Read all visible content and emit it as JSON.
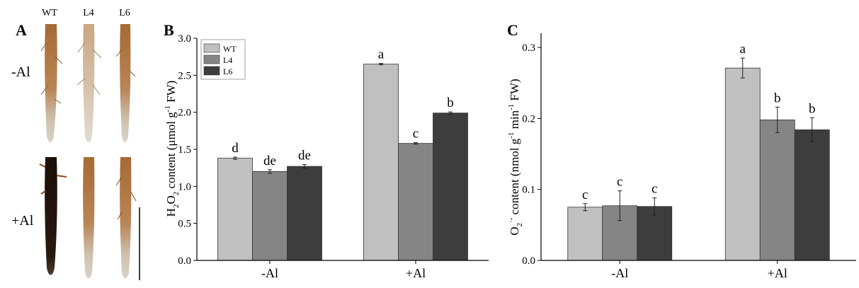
{
  "panel_a": {
    "letter": "A",
    "columns": [
      "WT",
      "L4",
      "L6"
    ],
    "rows": [
      "-Al",
      "+Al"
    ]
  },
  "chart_data": [
    {
      "panel_letter": "B",
      "type": "bar",
      "categories": [
        "-Al",
        "+Al"
      ],
      "series": [
        {
          "name": "WT",
          "values": [
            1.38,
            2.65
          ],
          "errors": [
            0.015,
            0.01
          ],
          "letters": [
            "d",
            "a"
          ],
          "color": "#c0c0c0"
        },
        {
          "name": "L4",
          "values": [
            1.2,
            1.58
          ],
          "errors": [
            0.025,
            0.01
          ],
          "letters": [
            "de",
            "c"
          ],
          "color": "#858585"
        },
        {
          "name": "L6",
          "values": [
            1.27,
            1.99
          ],
          "errors": [
            0.025,
            0.015
          ],
          "letters": [
            "de",
            "b"
          ],
          "color": "#3d3d3d"
        }
      ],
      "ylabel": {
        "prefix": "H",
        "sub1": "2",
        "mid": "O",
        "sub2": "2",
        "rest": " content (μmol g",
        "sup": "-1",
        "tail": " FW)"
      },
      "ylim": [
        0,
        3.0
      ],
      "yticks": [
        "0.0",
        "0.5",
        "1.0",
        "1.5",
        "2.0",
        "2.5",
        "3.0"
      ],
      "legend": "top-left"
    },
    {
      "panel_letter": "C",
      "type": "bar",
      "categories": [
        "-Al",
        "+Al"
      ],
      "series": [
        {
          "name": "WT",
          "values": [
            0.075,
            0.271
          ],
          "errors": [
            0.005,
            0.014
          ],
          "letters": [
            "c",
            "a"
          ],
          "color": "#c0c0c0"
        },
        {
          "name": "L4",
          "values": [
            0.077,
            0.198
          ],
          "errors": [
            0.021,
            0.018
          ],
          "letters": [
            "c",
            "b"
          ],
          "color": "#858585"
        },
        {
          "name": "L6",
          "values": [
            0.076,
            0.184
          ],
          "errors": [
            0.012,
            0.017
          ],
          "letters": [
            "c",
            "b"
          ],
          "color": "#3d3d3d"
        }
      ],
      "ylabel": {
        "prefix": "O",
        "sub1": "2",
        "sup0": "·-",
        "rest": " content (nmol g",
        "sup": "-1",
        "mid2": " min",
        "sup2": "-1",
        "tail": " FW)"
      },
      "ylim": [
        0,
        0.32
      ],
      "yticks": [
        "0.0",
        "0.1",
        "0.2",
        "0.3"
      ],
      "legend": "none"
    }
  ]
}
